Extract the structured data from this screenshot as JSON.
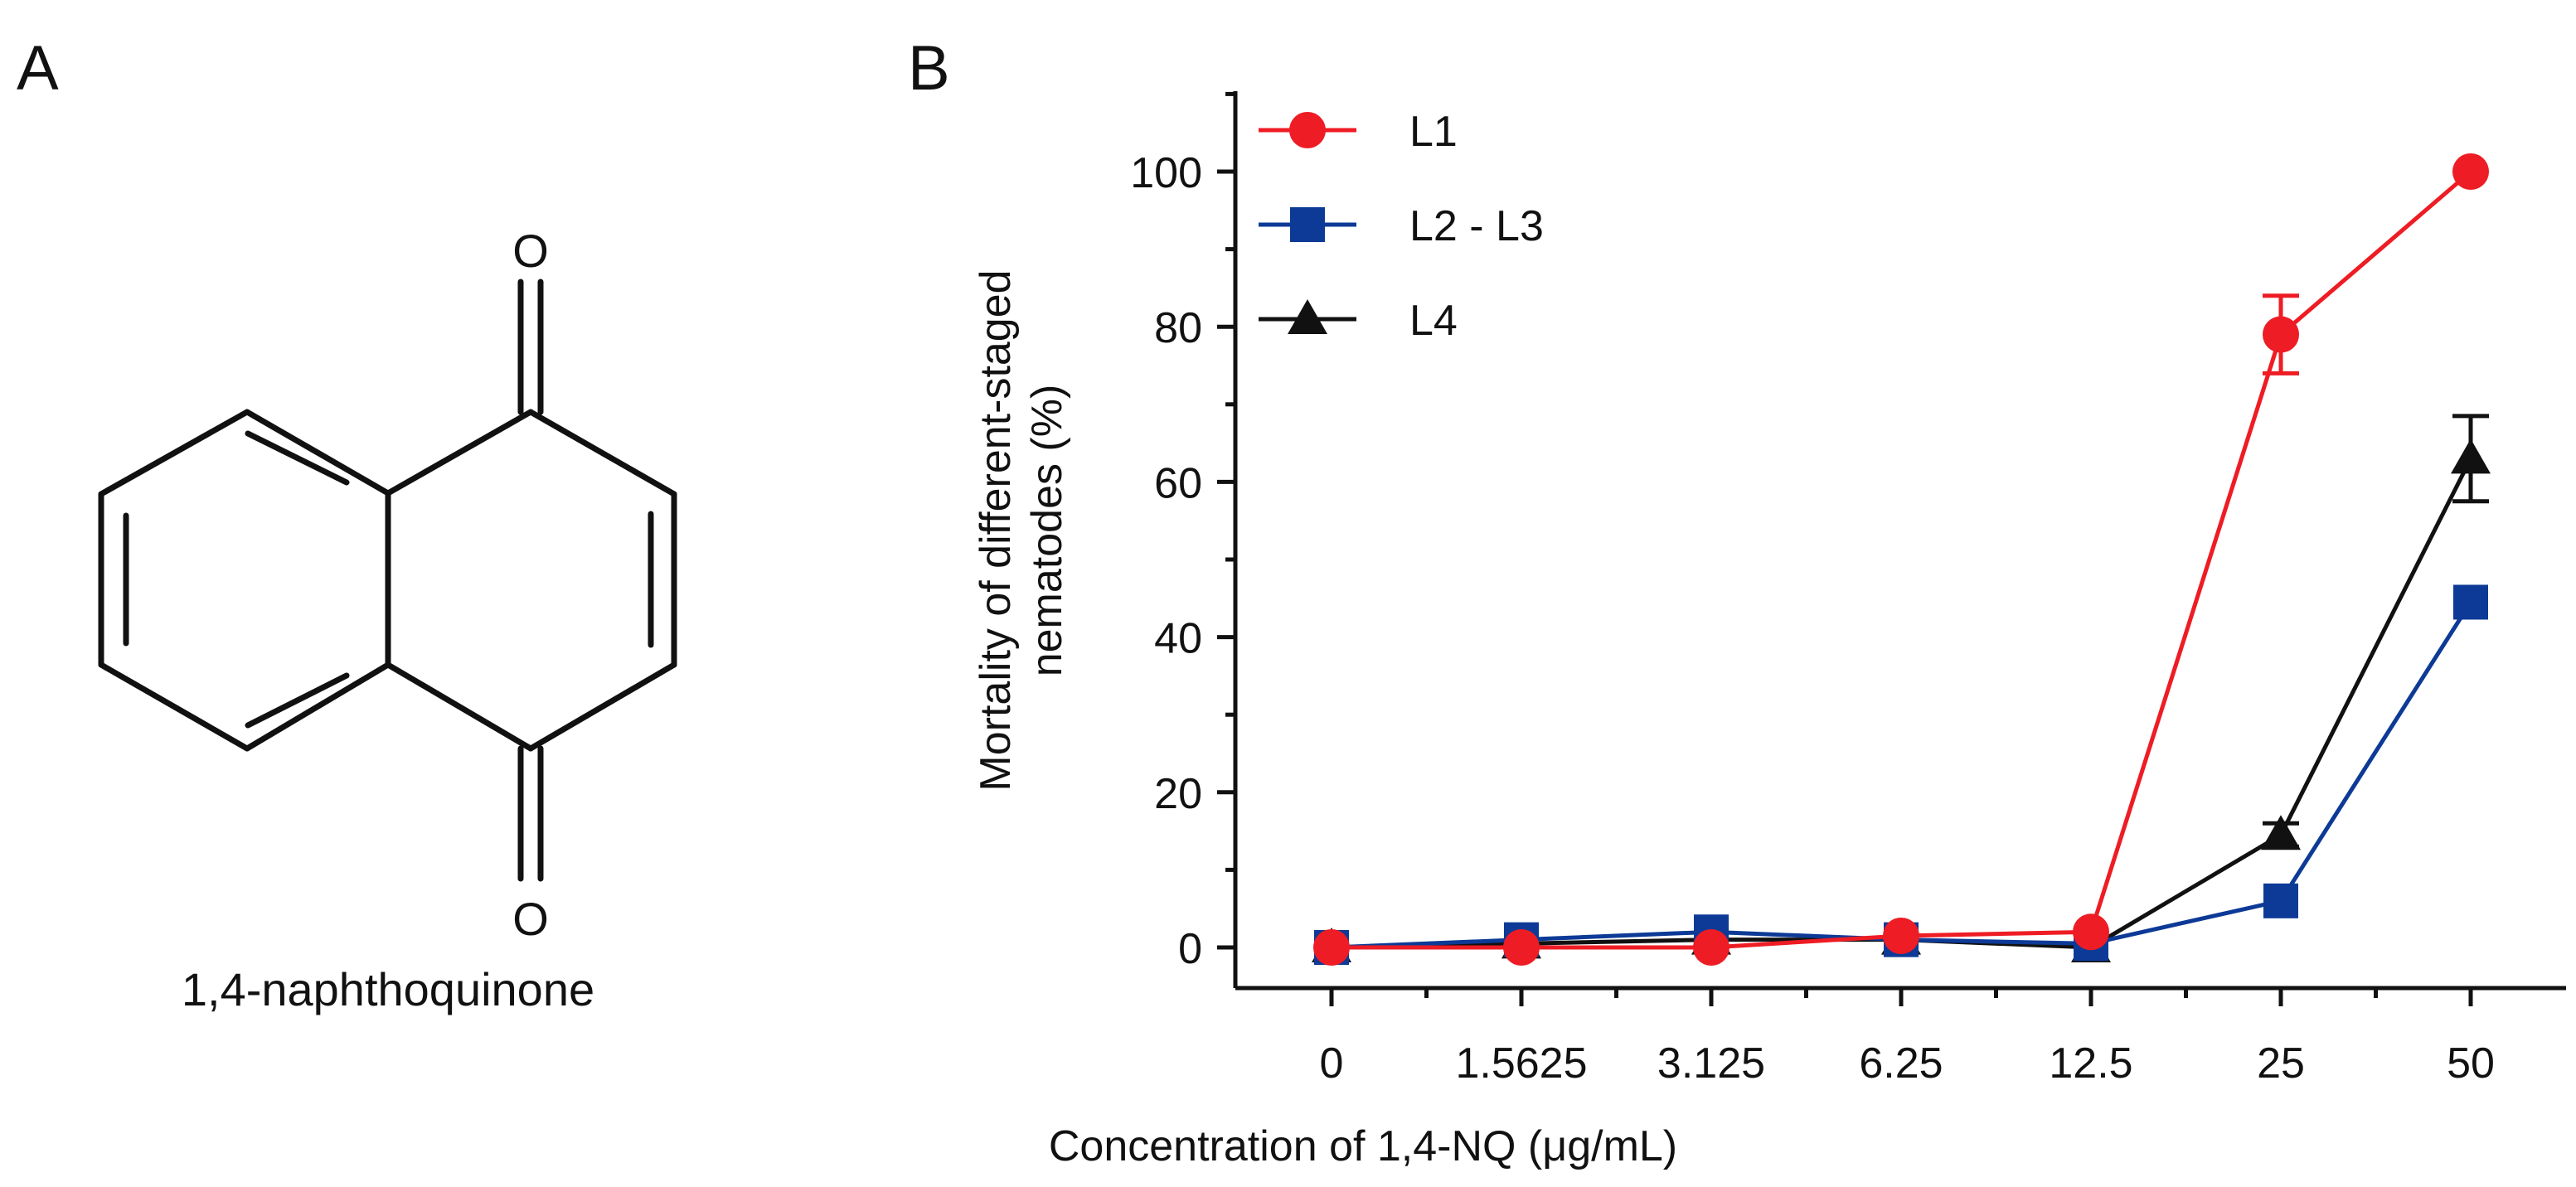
{
  "panels": {
    "a_label": "A",
    "b_label": "B"
  },
  "molecule": {
    "name": "1,4-naphthoquinone",
    "atom_top": "O",
    "atom_bottom": "O"
  },
  "chart_data": {
    "type": "line",
    "title": "",
    "xlabel": "Concentration of 1,4-NQ (μg/mL)",
    "ylabel_line1": "Mortality of different-staged",
    "ylabel_line2": "nematodes (%)",
    "categories": [
      "0",
      "1.5625",
      "3.125",
      "6.25",
      "12.5",
      "25",
      "50"
    ],
    "ylim": [
      -5,
      110
    ],
    "yticks": [
      0,
      20,
      40,
      60,
      80,
      100
    ],
    "legend_position": "top-left",
    "series": [
      {
        "name": "L1",
        "color": "#ee1c24",
        "marker": "circle",
        "values": [
          0,
          0,
          0,
          1.5,
          2,
          79,
          100
        ],
        "errors": [
          0,
          0,
          0,
          0,
          0,
          5,
          0
        ]
      },
      {
        "name": "L2 - L3",
        "color": "#0d3a96",
        "marker": "square",
        "values": [
          0,
          1,
          2,
          1,
          0.5,
          6,
          44.5
        ],
        "errors": [
          0,
          0,
          0,
          0,
          0,
          0,
          0
        ]
      },
      {
        "name": "L4",
        "color": "#111111",
        "marker": "triangle",
        "values": [
          0,
          0.5,
          1,
          1,
          0,
          14.5,
          63
        ],
        "errors": [
          0,
          0,
          0,
          0,
          0,
          1.5,
          5.5
        ]
      }
    ]
  }
}
